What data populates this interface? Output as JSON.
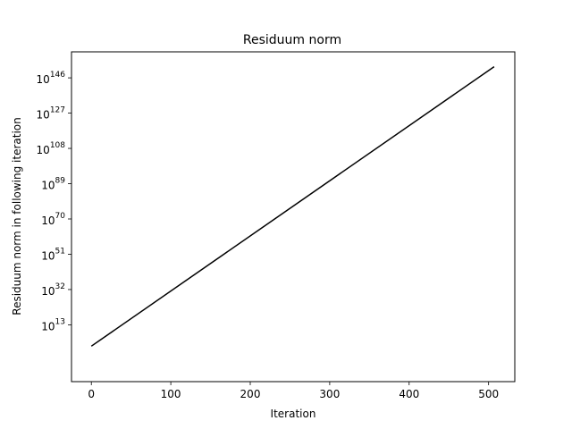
{
  "chart_data": {
    "type": "line",
    "title": "Residuum norm",
    "xlabel": "Iteration",
    "ylabel": "Residuum norm in following iteration",
    "x_ticks": [
      0,
      100,
      200,
      300,
      400,
      500
    ],
    "y_scale": "log",
    "y_ticks": [
      {
        "base": "10",
        "exp": "13",
        "log10": 13
      },
      {
        "base": "10",
        "exp": "32",
        "log10": 32
      },
      {
        "base": "10",
        "exp": "51",
        "log10": 51
      },
      {
        "base": "10",
        "exp": "70",
        "log10": 70
      },
      {
        "base": "10",
        "exp": "89",
        "log10": 89
      },
      {
        "base": "10",
        "exp": "108",
        "log10": 108
      },
      {
        "base": "10",
        "exp": "127",
        "log10": 127
      },
      {
        "base": "10",
        "exp": "146",
        "log10": 146
      }
    ],
    "xlim": [
      -25,
      533
    ],
    "ylim_log10": [
      -17.6,
      160.0
    ],
    "grid": false,
    "line_color": "#000000",
    "series": [
      {
        "x": [
          0,
          507
        ],
        "y_log10": [
          1.5,
          152.0
        ]
      }
    ]
  }
}
